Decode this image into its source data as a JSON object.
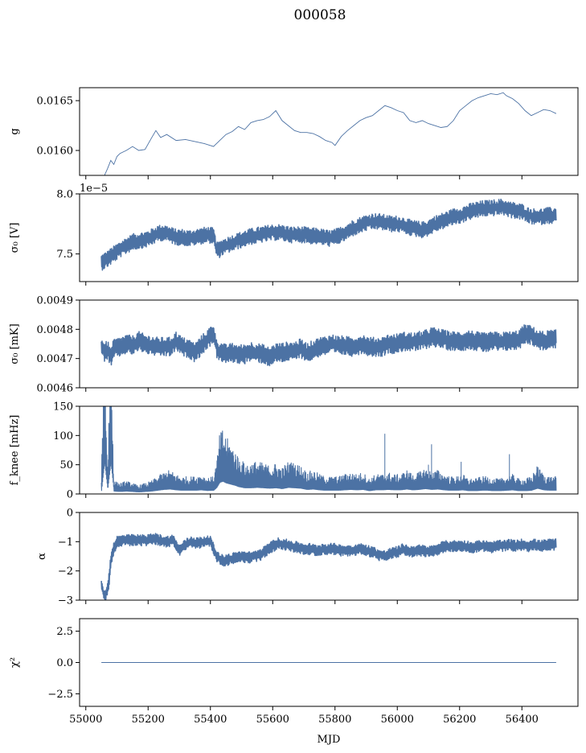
{
  "figure": {
    "title": "000058",
    "xlabel": "MJD",
    "line_color": "#4c72a4",
    "background": "#ffffff"
  },
  "chart_data": [
    {
      "type": "line",
      "ylabel": "g",
      "xlim": [
        54980,
        56580
      ],
      "ylim": [
        0.01575,
        0.01663
      ],
      "yticks": [
        0.016,
        0.0165
      ],
      "ytick_labels": [
        "0.0160",
        "0.0165"
      ],
      "xtick_labels_visible": false,
      "series": [
        {
          "x": [
            55050,
            55060,
            55070,
            55080,
            55090,
            55100,
            55110,
            55130,
            55150,
            55170,
            55190,
            55210,
            55225,
            55240,
            55260,
            55290,
            55320,
            55350,
            55380,
            55410,
            55430,
            55450,
            55470,
            55490,
            55510,
            55530,
            55550,
            55570,
            55590,
            55610,
            55630,
            55650,
            55670,
            55690,
            55710,
            55730,
            55750,
            55770,
            55790,
            55800,
            55820,
            55840,
            55860,
            55880,
            55900,
            55920,
            55940,
            55960,
            55980,
            56000,
            56020,
            56040,
            56060,
            56080,
            56100,
            56120,
            56140,
            56160,
            56180,
            56200,
            56220,
            56240,
            56260,
            56280,
            56300,
            56320,
            56340,
            56350,
            56370,
            56390,
            56410,
            56430,
            56450,
            56470,
            56490,
            56510
          ],
          "values": [
            0.0157,
            0.01575,
            0.01582,
            0.0159,
            0.01586,
            0.01594,
            0.01597,
            0.016,
            0.01604,
            0.016,
            0.01601,
            0.01612,
            0.0162,
            0.01613,
            0.01616,
            0.0161,
            0.01611,
            0.01609,
            0.01607,
            0.01604,
            0.0161,
            0.01616,
            0.01619,
            0.01624,
            0.01621,
            0.01628,
            0.0163,
            0.01631,
            0.01634,
            0.0164,
            0.0163,
            0.01625,
            0.0162,
            0.01618,
            0.01618,
            0.01617,
            0.01614,
            0.0161,
            0.01608,
            0.01605,
            0.01614,
            0.0162,
            0.01625,
            0.0163,
            0.01633,
            0.01635,
            0.0164,
            0.01645,
            0.01643,
            0.0164,
            0.01638,
            0.0163,
            0.01628,
            0.0163,
            0.01627,
            0.01625,
            0.01623,
            0.01624,
            0.0163,
            0.0164,
            0.01645,
            0.0165,
            0.01653,
            0.01655,
            0.01657,
            0.01656,
            0.01658,
            0.01655,
            0.01652,
            0.01647,
            0.0164,
            0.01635,
            0.01638,
            0.01641,
            0.0164,
            0.01637
          ]
        }
      ]
    },
    {
      "type": "line",
      "ylabel": "σ₀ [V]",
      "offset_text": "1e−5",
      "xlim": [
        54980,
        56580
      ],
      "ylim": [
        7.27,
        8.0
      ],
      "yticks": [
        7.5,
        8.0
      ],
      "ytick_labels": [
        "7.5",
        "8.0"
      ],
      "xtick_labels_visible": false,
      "band_halfwidth": 0.045,
      "series": [
        {
          "x": [
            55050,
            55070,
            55090,
            55110,
            55130,
            55150,
            55170,
            55190,
            55210,
            55230,
            55250,
            55270,
            55290,
            55310,
            55330,
            55350,
            55370,
            55390,
            55410,
            55420,
            55425,
            55440,
            55460,
            55480,
            55500,
            55520,
            55540,
            55560,
            55580,
            55600,
            55620,
            55640,
            55660,
            55680,
            55700,
            55720,
            55740,
            55760,
            55780,
            55800,
            55820,
            55840,
            55860,
            55880,
            55900,
            55920,
            55940,
            55960,
            55980,
            56000,
            56020,
            56040,
            56060,
            56080,
            56100,
            56120,
            56140,
            56160,
            56180,
            56200,
            56220,
            56240,
            56260,
            56280,
            56300,
            56320,
            56340,
            56360,
            56380,
            56400,
            56420,
            56440,
            56460,
            56480,
            56510
          ],
          "values": [
            7.43,
            7.46,
            7.5,
            7.54,
            7.57,
            7.6,
            7.61,
            7.62,
            7.64,
            7.67,
            7.68,
            7.66,
            7.64,
            7.64,
            7.63,
            7.64,
            7.65,
            7.66,
            7.65,
            7.53,
            7.53,
            7.56,
            7.58,
            7.6,
            7.62,
            7.64,
            7.65,
            7.66,
            7.67,
            7.68,
            7.68,
            7.67,
            7.66,
            7.66,
            7.66,
            7.65,
            7.65,
            7.64,
            7.63,
            7.64,
            7.66,
            7.69,
            7.72,
            7.74,
            7.76,
            7.77,
            7.77,
            7.76,
            7.75,
            7.75,
            7.74,
            7.72,
            7.71,
            7.7,
            7.72,
            7.75,
            7.77,
            7.79,
            7.81,
            7.82,
            7.84,
            7.86,
            7.87,
            7.88,
            7.88,
            7.89,
            7.89,
            7.87,
            7.86,
            7.85,
            7.82,
            7.81,
            7.81,
            7.82,
            7.82
          ]
        }
      ]
    },
    {
      "type": "line",
      "ylabel": "σ₀ [mK]",
      "xlim": [
        54980,
        56580
      ],
      "ylim": [
        0.0046,
        0.0049
      ],
      "yticks": [
        0.0046,
        0.0047,
        0.0048,
        0.0049
      ],
      "ytick_labels": [
        "0.0046",
        "0.0047",
        "0.0048",
        "0.0049"
      ],
      "xtick_labels_visible": false,
      "band_halfwidth": 2.2e-05,
      "series": [
        {
          "x": [
            55050,
            55060,
            55070,
            55080,
            55090,
            55110,
            55130,
            55150,
            55170,
            55190,
            55210,
            55230,
            55250,
            55270,
            55290,
            55310,
            55330,
            55350,
            55370,
            55390,
            55410,
            55420,
            55430,
            55450,
            55470,
            55490,
            55510,
            55530,
            55550,
            55570,
            55590,
            55610,
            55630,
            55650,
            55670,
            55690,
            55710,
            55730,
            55750,
            55770,
            55790,
            55810,
            55830,
            55850,
            55870,
            55890,
            55910,
            55930,
            55950,
            55970,
            55990,
            56010,
            56030,
            56050,
            56070,
            56090,
            56110,
            56130,
            56150,
            56170,
            56190,
            56210,
            56230,
            56250,
            56270,
            56290,
            56310,
            56330,
            56350,
            56370,
            56390,
            56410,
            56430,
            56450,
            56470,
            56490,
            56510
          ],
          "values": [
            0.004745,
            0.00472,
            0.00473,
            0.0047,
            0.004735,
            0.00474,
            0.00475,
            0.004745,
            0.00476,
            0.00475,
            0.004745,
            0.00474,
            0.00474,
            0.00474,
            0.00476,
            0.00474,
            0.004735,
            0.00472,
            0.004745,
            0.004765,
            0.00479,
            0.00473,
            0.004725,
            0.004715,
            0.00472,
            0.004715,
            0.004715,
            0.004725,
            0.00472,
            0.004715,
            0.004705,
            0.00472,
            0.00472,
            0.004725,
            0.004725,
            0.004735,
            0.00472,
            0.00473,
            0.00474,
            0.004745,
            0.00475,
            0.004745,
            0.004745,
            0.00474,
            0.004745,
            0.00475,
            0.00474,
            0.00474,
            0.00474,
            0.00475,
            0.00475,
            0.004755,
            0.00476,
            0.004755,
            0.00476,
            0.004765,
            0.004775,
            0.00477,
            0.004765,
            0.00476,
            0.00476,
            0.00476,
            0.004765,
            0.00476,
            0.004755,
            0.004755,
            0.00476,
            0.004755,
            0.00476,
            0.00476,
            0.004765,
            0.004785,
            0.00478,
            0.004765,
            0.00476,
            0.004765,
            0.004765
          ]
        }
      ]
    },
    {
      "type": "line",
      "ylabel": "f_knee [mHz]",
      "xlim": [
        54980,
        56580
      ],
      "ylim": [
        0,
        150
      ],
      "yticks": [
        0,
        50,
        100,
        150
      ],
      "ytick_labels": [
        "0",
        "50",
        "100",
        "150"
      ],
      "xtick_labels_visible": false,
      "series": [
        {
          "x": [
            55050,
            55060,
            55070,
            55080,
            55090,
            55110,
            55130,
            55150,
            55170,
            55190,
            55210,
            55230,
            55250,
            55270,
            55290,
            55310,
            55330,
            55350,
            55370,
            55390,
            55410,
            55420,
            55430,
            55440,
            55450,
            55460,
            55470,
            55480,
            55490,
            55510,
            55530,
            55550,
            55570,
            55590,
            55610,
            55630,
            55650,
            55670,
            55690,
            55710,
            55730,
            55750,
            55770,
            55790,
            55810,
            55830,
            55850,
            55870,
            55890,
            55910,
            55930,
            55950,
            55970,
            55990,
            56010,
            56030,
            56050,
            56070,
            56090,
            56110,
            56130,
            56150,
            56170,
            56190,
            56210,
            56230,
            56250,
            56270,
            56290,
            56310,
            56330,
            56350,
            56370,
            56390,
            56410,
            56430,
            56450,
            56470,
            56490,
            56510
          ],
          "values": [
            15,
            150,
            20,
            150,
            12,
            10,
            12,
            10,
            8,
            10,
            12,
            16,
            20,
            22,
            18,
            16,
            16,
            16,
            18,
            15,
            16,
            30,
            55,
            60,
            52,
            48,
            44,
            40,
            34,
            28,
            28,
            30,
            28,
            26,
            28,
            24,
            30,
            28,
            26,
            20,
            22,
            18,
            16,
            16,
            16,
            18,
            20,
            18,
            20,
            14,
            18,
            18,
            20,
            18,
            18,
            22,
            18,
            20,
            24,
            20,
            22,
            18,
            16,
            16,
            18,
            14,
            14,
            16,
            16,
            14,
            14,
            16,
            18,
            14,
            14,
            16,
            26,
            18,
            16,
            16
          ]
        }
      ]
    },
    {
      "type": "line",
      "ylabel": "α",
      "xlim": [
        54980,
        56580
      ],
      "ylim": [
        -3,
        0
      ],
      "yticks": [
        -3,
        -2,
        -1,
        0
      ],
      "ytick_labels": [
        "−3",
        "−2",
        "−1",
        "0"
      ],
      "xtick_labels_visible": false,
      "band_halfwidth": 0.13,
      "series": [
        {
          "x": [
            55050,
            55060,
            55070,
            55075,
            55080,
            55090,
            55100,
            55120,
            55140,
            55160,
            55180,
            55200,
            55220,
            55240,
            55260,
            55280,
            55300,
            55320,
            55340,
            55360,
            55380,
            55400,
            55420,
            55440,
            55460,
            55480,
            55500,
            55520,
            55540,
            55560,
            55580,
            55600,
            55620,
            55640,
            55660,
            55680,
            55700,
            55720,
            55740,
            55760,
            55780,
            55800,
            55820,
            55840,
            55860,
            55880,
            55900,
            55920,
            55940,
            55960,
            55980,
            56000,
            56020,
            56040,
            56060,
            56080,
            56100,
            56120,
            56140,
            56160,
            56180,
            56200,
            56220,
            56240,
            56260,
            56280,
            56300,
            56320,
            56340,
            56360,
            56380,
            56400,
            56420,
            56440,
            56460,
            56480,
            56510
          ],
          "values": [
            -2.5,
            -2.9,
            -2.6,
            -2.2,
            -1.6,
            -1.2,
            -1.0,
            -0.95,
            -0.95,
            -0.95,
            -0.95,
            -0.95,
            -0.9,
            -0.95,
            -1.0,
            -0.95,
            -1.3,
            -1.1,
            -1.0,
            -1.05,
            -1.0,
            -1.0,
            -1.5,
            -1.65,
            -1.6,
            -1.55,
            -1.5,
            -1.55,
            -1.5,
            -1.45,
            -1.3,
            -1.15,
            -1.05,
            -1.1,
            -1.15,
            -1.2,
            -1.25,
            -1.25,
            -1.3,
            -1.25,
            -1.25,
            -1.25,
            -1.3,
            -1.3,
            -1.3,
            -1.25,
            -1.3,
            -1.35,
            -1.45,
            -1.5,
            -1.4,
            -1.35,
            -1.25,
            -1.35,
            -1.3,
            -1.3,
            -1.35,
            -1.3,
            -1.2,
            -1.15,
            -1.15,
            -1.15,
            -1.15,
            -1.2,
            -1.15,
            -1.15,
            -1.2,
            -1.15,
            -1.15,
            -1.1,
            -1.15,
            -1.1,
            -1.15,
            -1.1,
            -1.15,
            -1.1,
            -1.1
          ]
        }
      ]
    },
    {
      "type": "line",
      "ylabel": "χ²",
      "xlim": [
        54980,
        56580
      ],
      "ylim": [
        -3.5,
        3.5
      ],
      "yticks": [
        -2.5,
        0.0,
        2.5
      ],
      "ytick_labels": [
        "−2.5",
        "0.0",
        "2.5"
      ],
      "xtick_labels_visible": true,
      "xticks": [
        55000,
        55200,
        55400,
        55600,
        55800,
        56000,
        56200,
        56400
      ],
      "xtick_labels": [
        "55000",
        "55200",
        "55400",
        "55600",
        "55800",
        "56000",
        "56200",
        "56400"
      ],
      "series": [
        {
          "x": [
            55050,
            56510
          ],
          "values": [
            0,
            0
          ]
        }
      ]
    }
  ]
}
